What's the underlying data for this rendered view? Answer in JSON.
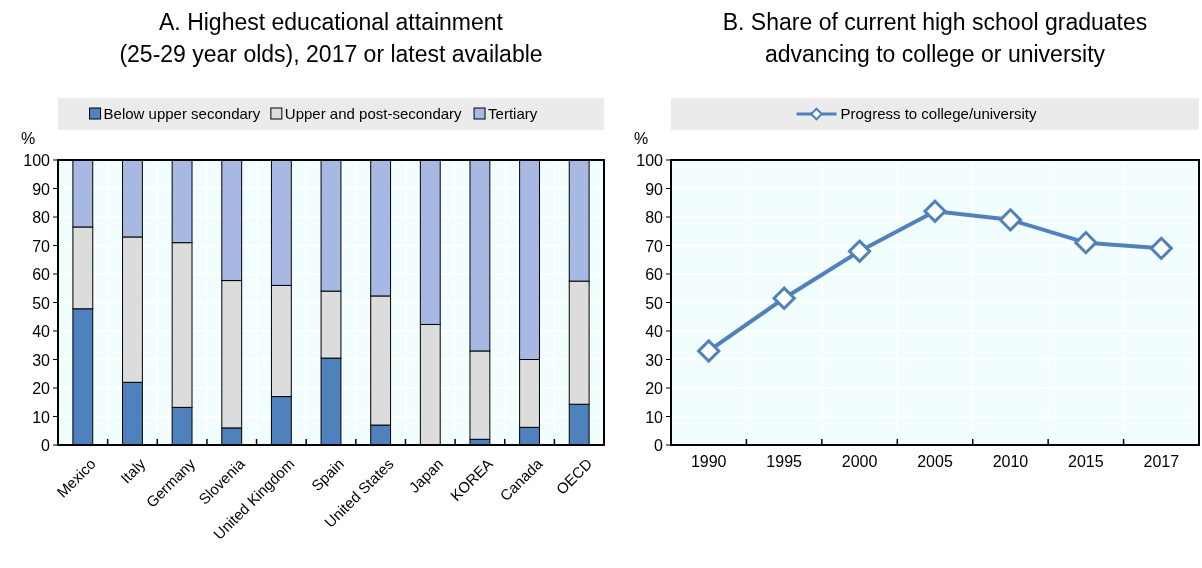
{
  "chart_data": [
    {
      "type": "bar",
      "title": "A. Highest educational attainment\n(25-29 year olds), 2017 or latest available",
      "ylabel": "%",
      "stacked": true,
      "categories": [
        "Mexico",
        "Italy",
        "Germany",
        "Slovenia",
        "United Kingdom",
        "Spain",
        "United States",
        "Japan",
        "KOREA",
        "Canada",
        "OECD"
      ],
      "series": [
        {
          "name": "Below upper secondary",
          "color": "#4f81bd",
          "values": [
            47.8,
            22,
            13.2,
            6,
            17,
            30.5,
            7,
            0,
            2,
            6.2,
            14.3
          ]
        },
        {
          "name": "Upper and post-secondary",
          "color": "#dcdcdc",
          "values": [
            28.7,
            51,
            57.8,
            51.7,
            39,
            23.5,
            45.3,
            42.3,
            31,
            23.8,
            43.2
          ]
        },
        {
          "name": "Tertiary",
          "color": "#a7b9e3",
          "values": [
            23.5,
            27,
            29,
            42.3,
            44,
            46,
            47.7,
            57.7,
            67,
            70,
            42.5
          ]
        }
      ],
      "ylim": [
        0,
        100
      ],
      "yticks": [
        0,
        10,
        20,
        30,
        40,
        50,
        60,
        70,
        80,
        90,
        100
      ],
      "grid": true,
      "legend": "top"
    },
    {
      "type": "line",
      "title": "B. Share of current high school graduates\nadvancing to college or university",
      "ylabel": "%",
      "categories": [
        "1990",
        "1995",
        "2000",
        "2005",
        "2010",
        "2015",
        "2017"
      ],
      "series": [
        {
          "name": "Progress to college/university",
          "color": "#4f81bd",
          "values": [
            33,
            51.5,
            68,
            82,
            79,
            71,
            69
          ]
        }
      ],
      "ylim": [
        0,
        100
      ],
      "yticks": [
        0,
        10,
        20,
        30,
        40,
        50,
        60,
        70,
        80,
        90,
        100
      ],
      "grid": true,
      "legend": "top",
      "marker": "diamond",
      "line_style": "solid"
    }
  ]
}
